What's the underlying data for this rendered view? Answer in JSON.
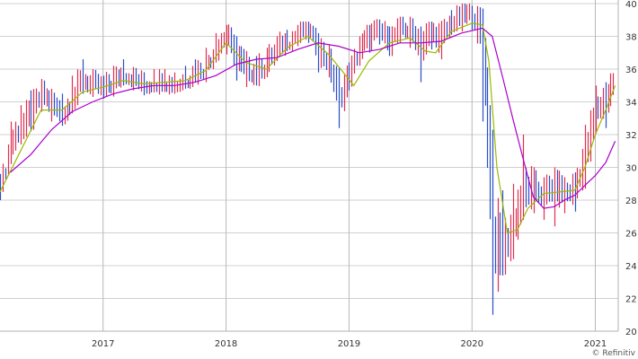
{
  "chart_data": {
    "type": "ohlc",
    "title": "",
    "xlabel": "",
    "ylabel": "",
    "ylim": [
      20,
      40
    ],
    "xlim": [
      "2016-03-01",
      "2021-03-10"
    ],
    "y_ticks": [
      20,
      22,
      24,
      26,
      28,
      30,
      32,
      34,
      36,
      38,
      40
    ],
    "x_ticks": [
      {
        "date": "2017-01-01",
        "label": "2017"
      },
      {
        "date": "2018-01-01",
        "label": "2018"
      },
      {
        "date": "2019-01-01",
        "label": "2019"
      },
      {
        "date": "2020-01-01",
        "label": "2020"
      },
      {
        "date": "2021-01-01",
        "label": "2021"
      }
    ],
    "grid": true,
    "y_axis_position": "right",
    "price_series": {
      "dates": [
        "2016-03-01",
        "2016-04-01",
        "2016-05-01",
        "2016-06-01",
        "2016-07-01",
        "2016-08-01",
        "2016-09-01",
        "2016-10-01",
        "2016-11-01",
        "2016-12-01",
        "2017-01-01",
        "2017-02-01",
        "2017-03-01",
        "2017-04-01",
        "2017-05-01",
        "2017-06-01",
        "2017-07-01",
        "2017-08-01",
        "2017-09-01",
        "2017-10-01",
        "2017-11-01",
        "2017-12-01",
        "2018-01-01",
        "2018-02-01",
        "2018-03-01",
        "2018-04-01",
        "2018-05-01",
        "2018-06-01",
        "2018-07-01",
        "2018-08-01",
        "2018-09-01",
        "2018-10-01",
        "2018-11-01",
        "2018-12-01",
        "2019-01-01",
        "2019-02-01",
        "2019-03-01",
        "2019-04-01",
        "2019-05-01",
        "2019-06-01",
        "2019-07-01",
        "2019-08-01",
        "2019-09-01",
        "2019-10-01",
        "2019-11-01",
        "2019-12-01",
        "2020-01-01",
        "2020-02-01",
        "2020-03-01",
        "2020-04-01",
        "2020-05-01",
        "2020-06-01",
        "2020-07-01",
        "2020-08-01",
        "2020-09-01",
        "2020-10-01",
        "2020-11-01",
        "2020-12-01",
        "2021-01-01",
        "2021-02-01",
        "2021-03-01"
      ],
      "values": [
        28.5,
        31.5,
        32.5,
        33.2,
        34.5,
        33.8,
        33.2,
        34.2,
        35.4,
        35.0,
        34.8,
        35.2,
        35.8,
        35.4,
        35.0,
        35.2,
        35.3,
        35.0,
        35.4,
        35.8,
        36.2,
        37.3,
        38.2,
        36.6,
        36.0,
        35.8,
        36.4,
        37.2,
        37.8,
        38.1,
        38.6,
        37.2,
        36.4,
        34.2,
        35.6,
        37.2,
        38.0,
        38.3,
        37.7,
        38.5,
        38.4,
        37.5,
        38.2,
        37.9,
        38.9,
        39.2,
        39.4,
        38.6,
        25.5,
        24.8,
        26.5,
        28.5,
        28.8,
        28.3,
        28.9,
        28.4,
        28.8,
        30.8,
        33.5,
        34.2,
        35.6
      ],
      "highs": [
        29.8,
        33.0,
        34.0,
        34.9,
        35.4,
        35.0,
        34.7,
        35.8,
        36.8,
        36.0,
        35.8,
        36.4,
        36.8,
        36.3,
        36.0,
        36.2,
        36.2,
        36.0,
        36.4,
        36.8,
        37.5,
        38.4,
        38.9,
        38.2,
        37.2,
        37.0,
        37.5,
        38.2,
        38.6,
        38.9,
        38.9,
        38.4,
        37.6,
        36.2,
        36.6,
        38.2,
        38.9,
        39.1,
        38.8,
        39.2,
        39.2,
        38.8,
        39.1,
        39.0,
        39.8,
        40.0,
        40.0,
        39.7,
        32.5,
        28.8,
        29.2,
        32.2,
        30.0,
        29.6,
        30.0,
        29.6,
        29.9,
        32.8,
        35.2,
        35.4,
        36.8
      ],
      "lows": [
        28.0,
        30.0,
        31.2,
        32.0,
        33.2,
        32.6,
        32.4,
        33.3,
        34.3,
        34.1,
        34.0,
        34.3,
        34.8,
        34.6,
        34.2,
        34.4,
        34.5,
        34.3,
        34.6,
        35.0,
        35.2,
        36.2,
        36.7,
        35.1,
        34.7,
        34.8,
        35.4,
        36.3,
        36.9,
        37.2,
        37.4,
        35.6,
        35.3,
        32.2,
        34.5,
        36.2,
        36.8,
        37.3,
        36.6,
        37.4,
        37.1,
        35.0,
        37.0,
        36.4,
        37.9,
        38.1,
        38.2,
        32.6,
        20.8,
        23.2,
        24.2,
        26.8,
        27.0,
        26.6,
        26.2,
        27.0,
        27.1,
        28.5,
        32.0,
        32.2,
        33.8
      ]
    },
    "moving_averages": [
      {
        "color": "#99bb00",
        "dates": [
          "2016-03-01",
          "2016-05-01",
          "2016-07-01",
          "2016-09-01",
          "2016-11-01",
          "2017-01-01",
          "2017-03-01",
          "2017-05-01",
          "2017-07-01",
          "2017-09-01",
          "2017-11-01",
          "2018-01-01",
          "2018-03-01",
          "2018-05-01",
          "2018-07-01",
          "2018-09-01",
          "2018-11-01",
          "2018-12-15",
          "2019-01-15",
          "2019-03-01",
          "2019-05-01",
          "2019-07-01",
          "2019-08-15",
          "2019-09-15",
          "2019-11-01",
          "2020-01-01",
          "2020-02-01",
          "2020-02-20",
          "2020-03-15",
          "2020-04-15",
          "2020-05-15",
          "2020-06-15",
          "2020-08-01",
          "2020-09-15",
          "2020-11-01",
          "2020-12-01",
          "2021-01-01",
          "2021-02-01",
          "2021-03-01"
        ],
        "values": [
          28.5,
          31.0,
          33.5,
          33.5,
          34.6,
          34.9,
          35.3,
          35.1,
          35.2,
          35.3,
          35.9,
          37.6,
          36.4,
          36.0,
          37.3,
          38.0,
          36.9,
          35.8,
          35.0,
          36.5,
          37.6,
          37.9,
          37.1,
          37.0,
          38.3,
          38.8,
          38.7,
          36.5,
          30.0,
          26.0,
          26.2,
          27.5,
          28.4,
          28.5,
          28.6,
          30.0,
          32.0,
          33.5,
          35.0
        ]
      },
      {
        "color": "#aa00cc",
        "dates": [
          "2016-04-01",
          "2016-06-01",
          "2016-08-01",
          "2016-10-01",
          "2016-12-01",
          "2017-02-01",
          "2017-04-01",
          "2017-06-01",
          "2017-08-01",
          "2017-10-01",
          "2017-12-01",
          "2018-02-01",
          "2018-04-01",
          "2018-06-01",
          "2018-08-01",
          "2018-10-01",
          "2018-12-01",
          "2019-02-01",
          "2019-04-01",
          "2019-06-01",
          "2019-08-01",
          "2019-10-01",
          "2019-12-01",
          "2020-02-01",
          "2020-03-01",
          "2020-04-01",
          "2020-05-01",
          "2020-06-01",
          "2020-07-01",
          "2020-08-01",
          "2020-09-01",
          "2020-10-01",
          "2020-11-01",
          "2020-12-01",
          "2021-01-01",
          "2021-02-01",
          "2021-03-01"
        ],
        "values": [
          29.7,
          30.8,
          32.3,
          33.4,
          34.0,
          34.5,
          34.8,
          35.0,
          35.0,
          35.2,
          35.6,
          36.3,
          36.6,
          36.7,
          37.2,
          37.6,
          37.4,
          37.0,
          37.2,
          37.6,
          37.6,
          37.7,
          38.2,
          38.5,
          38.0,
          35.5,
          33.0,
          30.5,
          28.2,
          27.5,
          27.6,
          28.0,
          28.3,
          28.9,
          29.5,
          30.3,
          31.6
        ]
      }
    ],
    "credit": "© Refinitiv"
  }
}
